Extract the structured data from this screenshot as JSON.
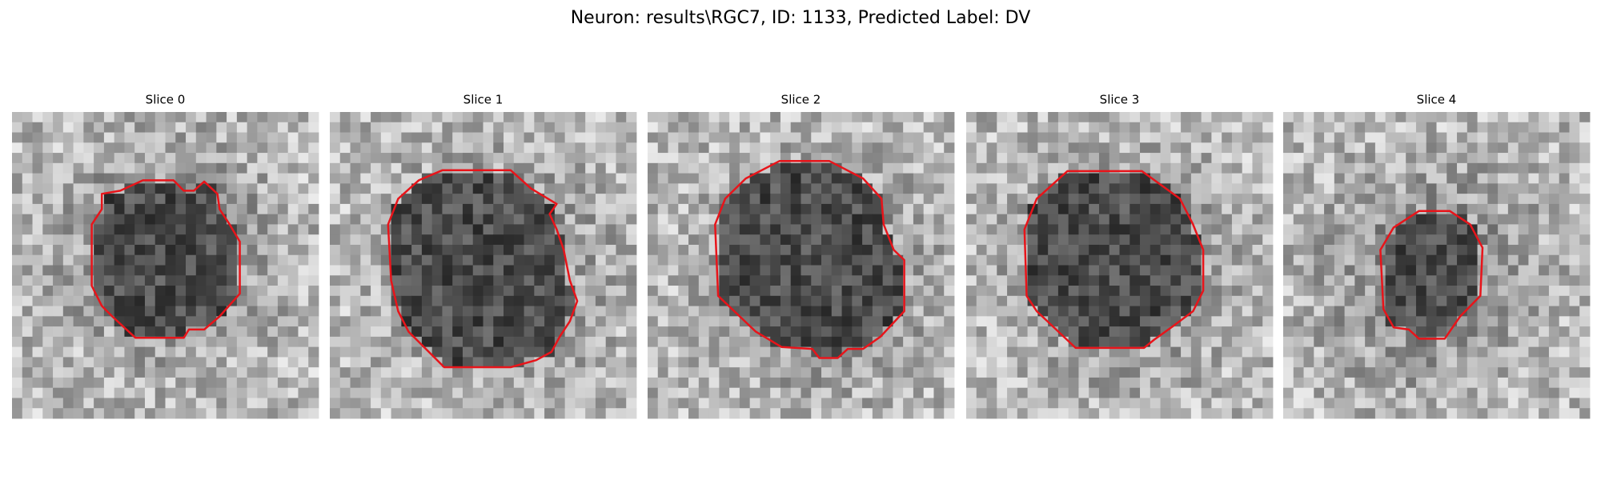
{
  "header": {
    "title": "Neuron: results\\RGC7, ID: 1133, Predicted Label: DV"
  },
  "panels": [
    {
      "title": "Slice 0"
    },
    {
      "title": "Slice 1"
    },
    {
      "title": "Slice 2"
    },
    {
      "title": "Slice 3"
    },
    {
      "title": "Slice 4"
    }
  ]
}
